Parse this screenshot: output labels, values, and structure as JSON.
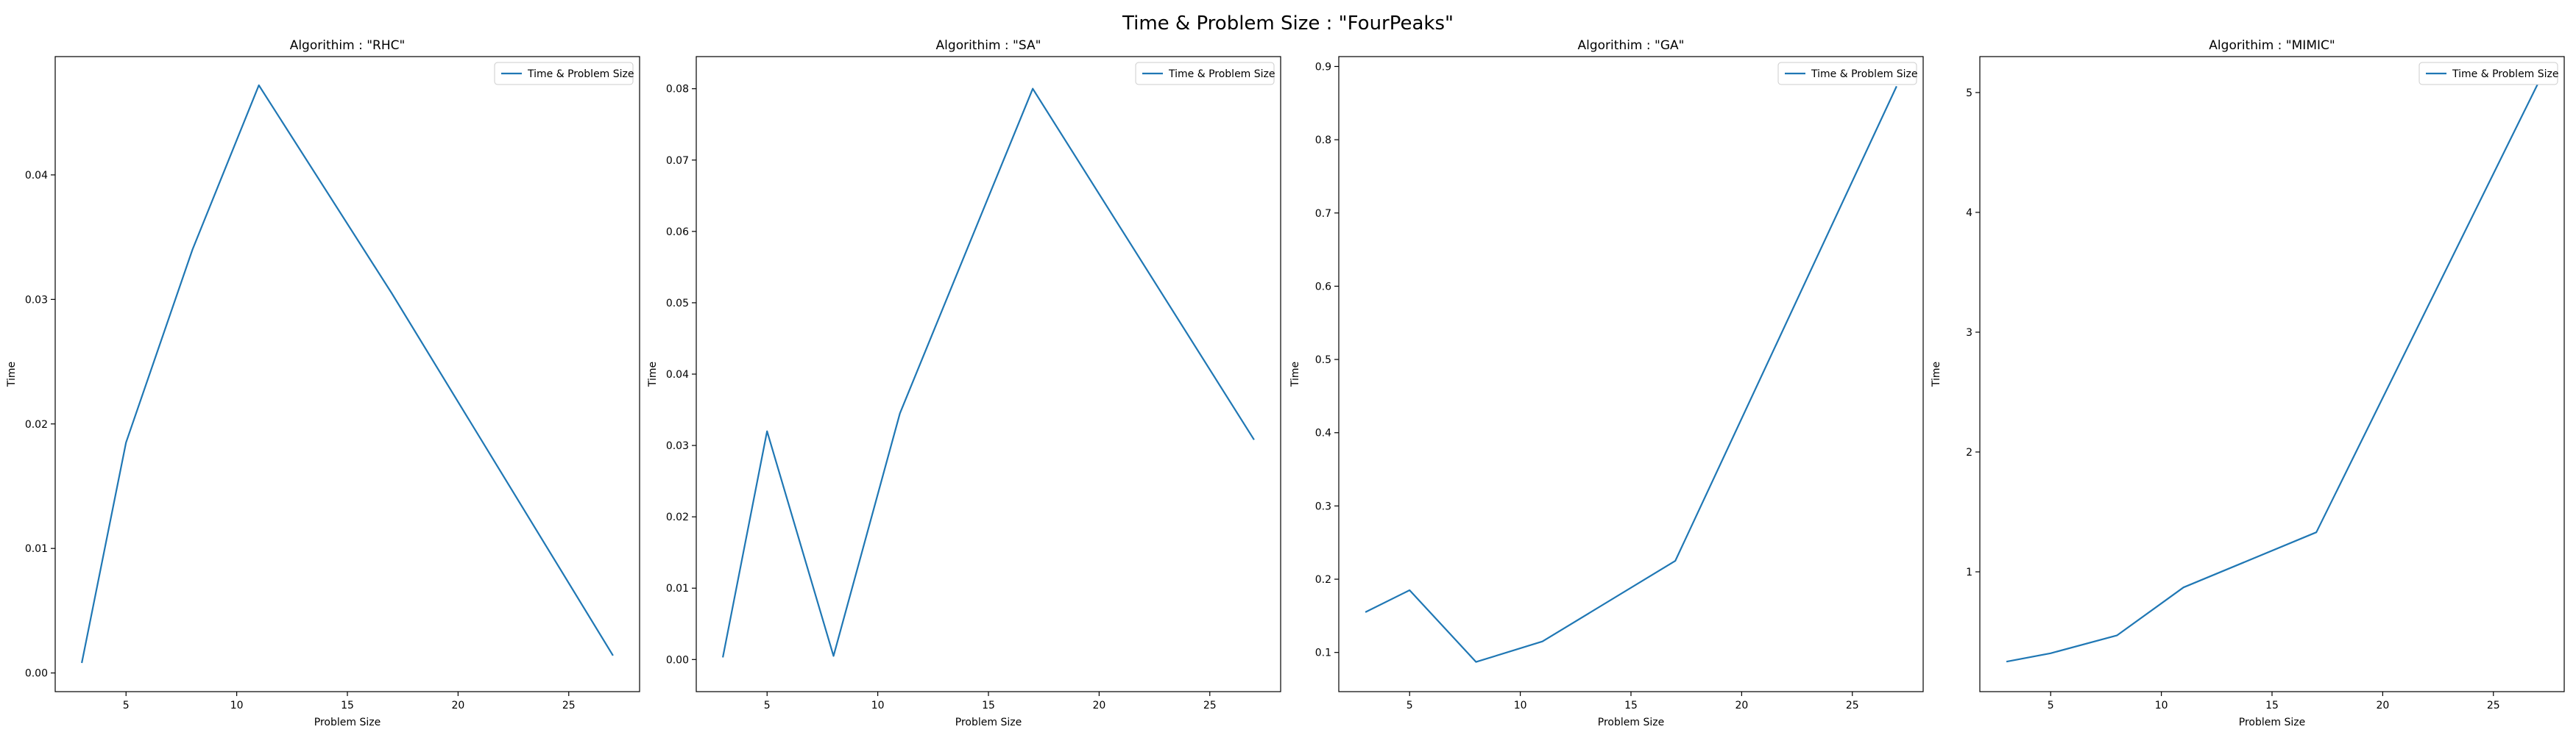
{
  "figure": {
    "suptitle": "Time & Problem Size : \"FourPeaks\""
  },
  "chart_data": [
    {
      "type": "line",
      "title": "Algorithim : \"RHC\"",
      "xlabel": "Problem Size",
      "ylabel": "Time",
      "legend": "top-right",
      "grid": false,
      "xlim": [
        1.8,
        28.2
      ],
      "ylim": [
        -0.0015,
        0.0495
      ],
      "xticks": [
        5,
        10,
        15,
        20,
        25
      ],
      "yticks": [
        0.0,
        0.01,
        0.02,
        0.03,
        0.04
      ],
      "ytick_labels": [
        "0.00",
        "0.01",
        "0.02",
        "0.03",
        "0.04"
      ],
      "series": [
        {
          "name": "Time & Problem Size",
          "color": "#1f77b4",
          "x": [
            3,
            5,
            8,
            11,
            17,
            27
          ],
          "y": [
            0.0008,
            0.0185,
            0.034,
            0.0472,
            0.0305,
            0.0014
          ]
        }
      ]
    },
    {
      "type": "line",
      "title": "Algorithim : \"SA\"",
      "xlabel": "Problem Size",
      "ylabel": "Time",
      "legend": "top-right",
      "grid": false,
      "xlim": [
        1.8,
        28.2
      ],
      "ylim": [
        -0.0045,
        0.0845
      ],
      "xticks": [
        5,
        10,
        15,
        20,
        25
      ],
      "yticks": [
        0.0,
        0.01,
        0.02,
        0.03,
        0.04,
        0.05,
        0.06,
        0.07,
        0.08
      ],
      "ytick_labels": [
        "0.00",
        "0.01",
        "0.02",
        "0.03",
        "0.04",
        "0.05",
        "0.06",
        "0.07",
        "0.08"
      ],
      "series": [
        {
          "name": "Time & Problem Size",
          "color": "#1f77b4",
          "x": [
            3,
            5,
            8,
            11,
            17,
            27
          ],
          "y": [
            0.0003,
            0.032,
            0.0005,
            0.0345,
            0.08,
            0.0308
          ]
        }
      ]
    },
    {
      "type": "line",
      "title": "Algorithim : \"GA\"",
      "xlabel": "Problem Size",
      "ylabel": "Time",
      "legend": "top-right",
      "grid": false,
      "xlim": [
        1.8,
        28.2
      ],
      "ylim": [
        0.0465,
        0.9135
      ],
      "xticks": [
        5,
        10,
        15,
        20,
        25
      ],
      "yticks": [
        0.1,
        0.2,
        0.3,
        0.4,
        0.5,
        0.6,
        0.7,
        0.8,
        0.9
      ],
      "ytick_labels": [
        "0.1",
        "0.2",
        "0.3",
        "0.4",
        "0.5",
        "0.6",
        "0.7",
        "0.8",
        "0.9"
      ],
      "series": [
        {
          "name": "Time & Problem Size",
          "color": "#1f77b4",
          "x": [
            3,
            5,
            8,
            11,
            17,
            27
          ],
          "y": [
            0.155,
            0.185,
            0.087,
            0.115,
            0.225,
            0.873
          ]
        }
      ]
    },
    {
      "type": "line",
      "title": "Algorithim : \"MIMIC\"",
      "xlabel": "Problem Size",
      "ylabel": "Time",
      "legend": "top-right",
      "grid": false,
      "xlim": [
        1.8,
        28.2
      ],
      "ylim": [
        0.0,
        5.3
      ],
      "xticks": [
        5,
        10,
        15,
        20,
        25
      ],
      "yticks": [
        1,
        2,
        3,
        4,
        5
      ],
      "ytick_labels": [
        "1",
        "2",
        "3",
        "4",
        "5"
      ],
      "series": [
        {
          "name": "Time & Problem Size",
          "color": "#1f77b4",
          "x": [
            3,
            5,
            8,
            11,
            17,
            27
          ],
          "y": [
            0.25,
            0.32,
            0.47,
            0.87,
            1.33,
            5.07
          ]
        }
      ]
    }
  ]
}
